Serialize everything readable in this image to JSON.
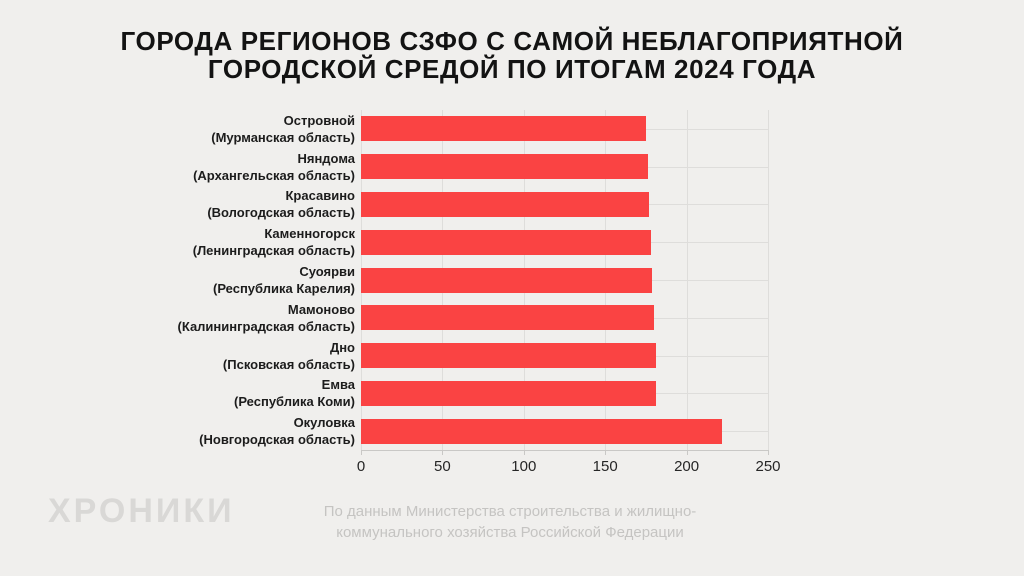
{
  "title": {
    "line1": "ГОРОДА РЕГИОНОВ СЗФО С САМОЙ НЕБЛАГОПРИЯТНОЙ",
    "line2": "ГОРОДСКОЙ СРЕДОЙ ПО ИТОГАМ 2024 ГОДА"
  },
  "chart_data": {
    "type": "bar",
    "orientation": "horizontal",
    "title": "ГОРОДА РЕГИОНОВ СЗФО С САМОЙ НЕБЛАГОПРИЯТНОЙ ГОРОДСКОЙ СРЕДОЙ ПО ИТОГАМ 2024 ГОДА",
    "xlabel": "",
    "ylabel": "",
    "xlim": [
      0,
      250
    ],
    "x_ticks": [
      0,
      50,
      100,
      150,
      200,
      250
    ],
    "grid": true,
    "legend": false,
    "bars": [
      {
        "city": "Островной",
        "region": "(Мурманская область)",
        "value": 175
      },
      {
        "city": "Няндома",
        "region": "(Архангельская область)",
        "value": 176
      },
      {
        "city": "Красавино",
        "region": "(Вологодская область)",
        "value": 177
      },
      {
        "city": "Каменногорск",
        "region": "(Ленинградская область)",
        "value": 178
      },
      {
        "city": "Суоярви",
        "region": "(Республика Карелия)",
        "value": 179
      },
      {
        "city": "Мамоново",
        "region": "(Калининградская область)",
        "value": 180
      },
      {
        "city": "Дно",
        "region": "(Псковская область)",
        "value": 181
      },
      {
        "city": "Емва",
        "region": "(Республика Коми)",
        "value": 181
      },
      {
        "city": "Окуловка",
        "region": "(Новгородская область)",
        "value": 222
      }
    ]
  },
  "footer": {
    "logo": "ХРОНИКИ",
    "source_line1": "По данным Министерства строительства и жилищно-",
    "source_line2": "коммунального хозяйства Российской Федерации"
  },
  "colors": {
    "background": "#F0EFED",
    "bar": "#FA4343",
    "grid": "#DEDDDB",
    "axis": "#C9C8C6",
    "title_text": "#131313",
    "category_text": "#1C1C1C",
    "tick_text": "#262626",
    "source_text": "#C5C4C2",
    "logo_text": "#D9D8D6"
  }
}
